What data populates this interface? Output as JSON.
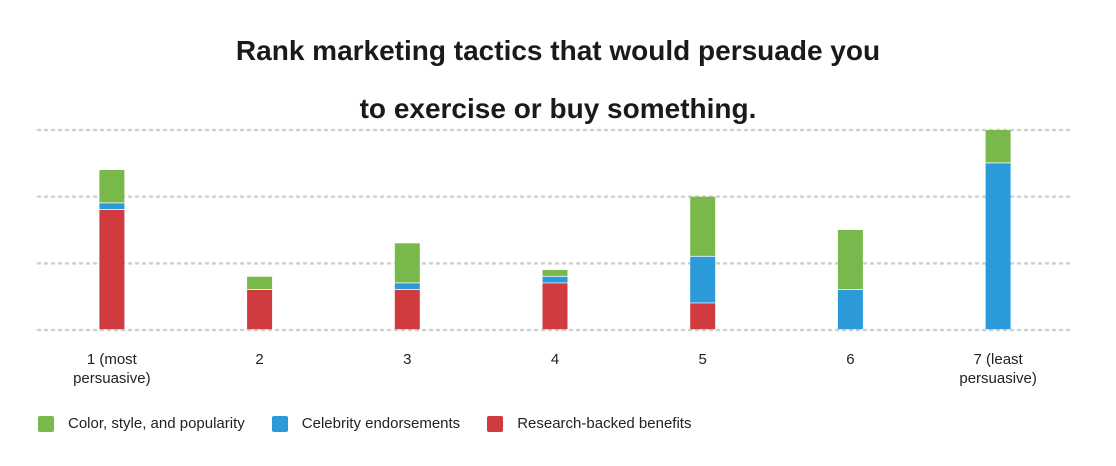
{
  "chart_data": {
    "type": "bar",
    "stacked": true,
    "title_lines": [
      "Rank marketing tactics that would persuade you",
      "to exercise or buy something."
    ],
    "categories": [
      {
        "line1": "1 (most",
        "line2": "persuasive)"
      },
      {
        "line1": "2",
        "line2": ""
      },
      {
        "line1": "3",
        "line2": ""
      },
      {
        "line1": "4",
        "line2": ""
      },
      {
        "line1": "5",
        "line2": ""
      },
      {
        "line1": "6",
        "line2": ""
      },
      {
        "line1": "7 (least",
        "line2": "persuasive)"
      }
    ],
    "series": [
      {
        "name": "Research-backed benefits",
        "color": "#cf3b3f",
        "values": [
          18,
          6,
          6,
          7,
          4,
          0,
          0
        ]
      },
      {
        "name": "Celebrity endorsements",
        "color": "#2b9ad8",
        "values": [
          1,
          0,
          1,
          1,
          7,
          6,
          25
        ]
      },
      {
        "name": "Color, style, and popularity",
        "color": "#79b94b",
        "values": [
          5,
          2,
          6,
          1,
          9,
          9,
          5
        ]
      }
    ],
    "legend_order": [
      2,
      1,
      0
    ],
    "ylim": [
      0,
      30
    ],
    "grid": true,
    "legend_position": "bottom-left"
  }
}
